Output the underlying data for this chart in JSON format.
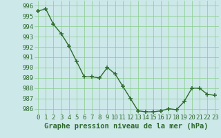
{
  "x": [
    0,
    1,
    2,
    3,
    4,
    5,
    6,
    7,
    8,
    9,
    10,
    11,
    12,
    13,
    14,
    15,
    16,
    17,
    18,
    19,
    20,
    21,
    22,
    23
  ],
  "y": [
    995.5,
    995.7,
    994.2,
    993.3,
    992.1,
    990.6,
    989.1,
    989.1,
    989.0,
    990.0,
    989.4,
    988.2,
    987.0,
    985.8,
    985.7,
    985.7,
    985.8,
    986.0,
    985.9,
    986.7,
    988.0,
    988.0,
    987.4,
    987.3
  ],
  "ylim": [
    985.5,
    996.5
  ],
  "yticks": [
    986,
    987,
    988,
    989,
    990,
    991,
    992,
    993,
    994,
    995,
    996
  ],
  "xticks": [
    0,
    1,
    2,
    3,
    4,
    5,
    6,
    7,
    8,
    9,
    10,
    11,
    12,
    13,
    14,
    15,
    16,
    17,
    18,
    19,
    20,
    21,
    22,
    23
  ],
  "xlabel": "Graphe pression niveau de la mer (hPa)",
  "line_color": "#2d6a2d",
  "marker_color": "#2d6a2d",
  "bg_color": "#cce8e8",
  "grid_color": "#88cc88",
  "tick_label_color": "#2d6a2d",
  "xlabel_color": "#2d6a2d",
  "xlabel_fontsize": 7.5,
  "tick_fontsize": 6.5,
  "linewidth": 1.0,
  "markersize": 4
}
